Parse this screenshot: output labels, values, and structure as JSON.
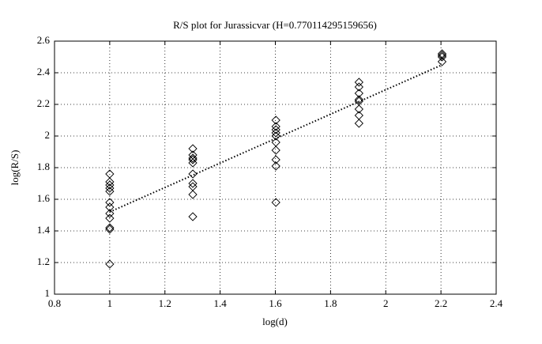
{
  "chart_data": {
    "type": "scatter",
    "title": "R/S plot for Jurassicvar (H=0.770114295159656)",
    "xlabel": "log(d)",
    "ylabel": "log(R/S)",
    "xlim": [
      0.8,
      2.4
    ],
    "xticks": [
      0.8,
      1,
      1.2,
      1.4,
      1.6,
      1.8,
      2,
      2.2,
      2.4
    ],
    "ylim": [
      1,
      2.6
    ],
    "yticks": [
      1,
      1.2,
      1.4,
      1.6,
      1.8,
      2,
      2.2,
      2.4,
      2.6
    ],
    "grid": true,
    "series": [
      {
        "type": "scatter",
        "color": "#000000",
        "x": [
          1,
          1,
          1,
          1,
          1,
          1,
          1,
          1,
          1,
          1,
          1,
          1,
          1.301,
          1.301,
          1.301,
          1.301,
          1.301,
          1.301,
          1.301,
          1.301,
          1.301,
          1.301,
          1.602,
          1.602,
          1.602,
          1.602,
          1.602,
          1.602,
          1.602,
          1.602,
          1.602,
          1.602,
          1.903,
          1.903,
          1.903,
          1.903,
          1.903,
          1.903,
          1.903,
          1.903,
          2.204,
          2.204,
          2.204,
          2.204
        ],
        "values": [
          1.76,
          1.71,
          1.69,
          1.67,
          1.65,
          1.58,
          1.55,
          1.51,
          1.48,
          1.42,
          1.41,
          1.19,
          1.92,
          1.88,
          1.86,
          1.85,
          1.83,
          1.76,
          1.7,
          1.68,
          1.63,
          1.49,
          2.1,
          2.06,
          2.04,
          2.02,
          2.0,
          1.96,
          1.91,
          1.85,
          1.81,
          1.58,
          2.34,
          2.31,
          2.27,
          2.23,
          2.22,
          2.17,
          2.13,
          2.08,
          2.52,
          2.51,
          2.5,
          2.47
        ]
      },
      {
        "type": "line",
        "color": "#000000",
        "x": [
          1,
          2.204
        ],
        "values": [
          1.52,
          2.45
        ]
      }
    ]
  }
}
